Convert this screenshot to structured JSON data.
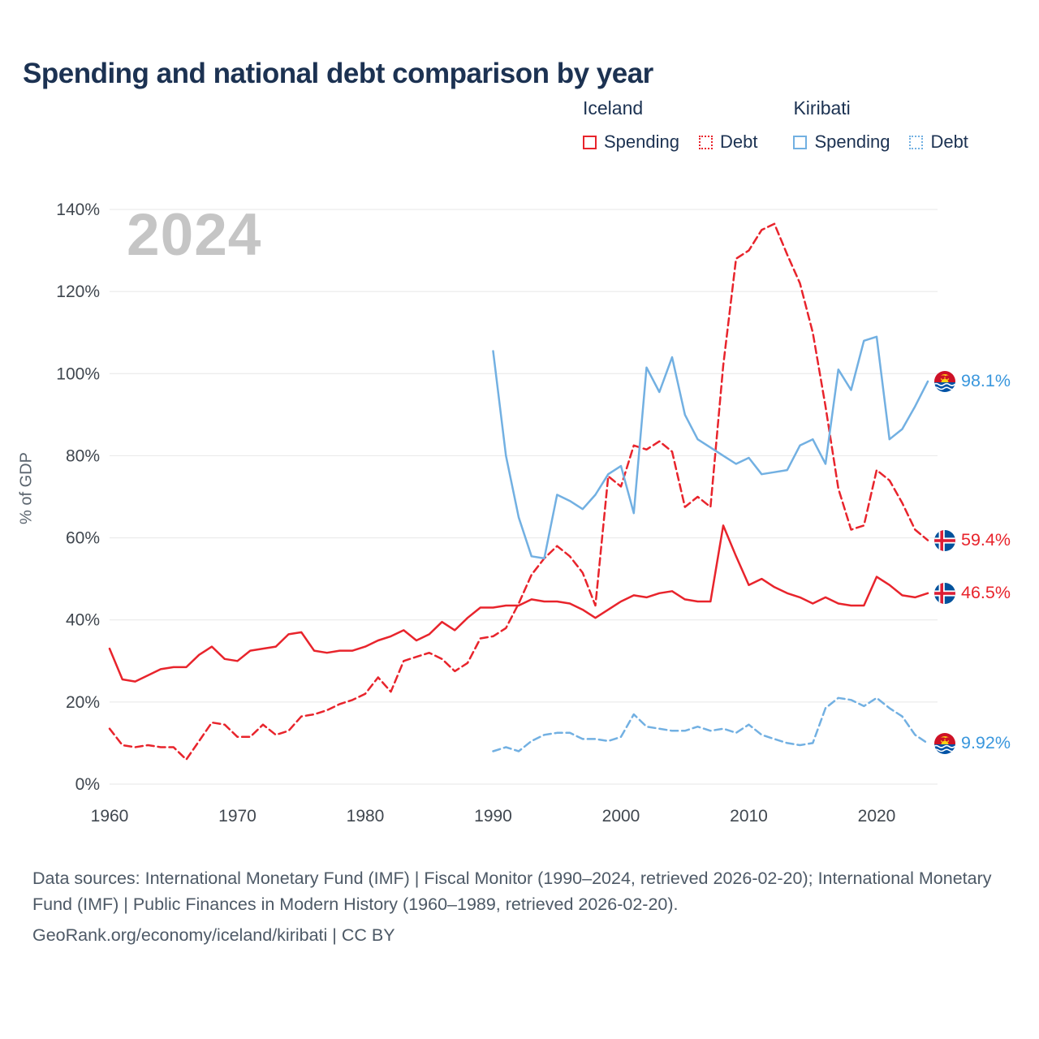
{
  "title": "Spending and national debt comparison by year",
  "watermark": "2024",
  "legend": {
    "groups": [
      {
        "country": "Iceland",
        "items": [
          {
            "label": "Spending",
            "color": "#e8242c",
            "style": "solid"
          },
          {
            "label": "Debt",
            "color": "#e8242c",
            "style": "dotted"
          }
        ]
      },
      {
        "country": "Kiribati",
        "items": [
          {
            "label": "Spending",
            "color": "#72b0e2",
            "style": "solid"
          },
          {
            "label": "Debt",
            "color": "#72b0e2",
            "style": "dotted"
          }
        ]
      }
    ]
  },
  "chart_data": {
    "type": "line",
    "title": "Spending and national debt comparison by year",
    "xlabel": "",
    "ylabel": "% of GDP",
    "ylim": [
      0,
      140
    ],
    "xlim": [
      1960,
      2024
    ],
    "grid": true,
    "legend_position": "top-right",
    "yticks": [
      {
        "label": "0%",
        "value": 0
      },
      {
        "label": "20%",
        "value": 20
      },
      {
        "label": "40%",
        "value": 40
      },
      {
        "label": "60%",
        "value": 60
      },
      {
        "label": "80%",
        "value": 80
      },
      {
        "label": "100%",
        "value": 100
      },
      {
        "label": "120%",
        "value": 120
      },
      {
        "label": "140%",
        "value": 140
      }
    ],
    "xticks": [
      {
        "label": "1960",
        "value": 1960
      },
      {
        "label": "1970",
        "value": 1970
      },
      {
        "label": "1980",
        "value": 1980
      },
      {
        "label": "1990",
        "value": 1990
      },
      {
        "label": "2000",
        "value": 2000
      },
      {
        "label": "2010",
        "value": 2010
      },
      {
        "label": "2020",
        "value": 2020
      }
    ],
    "series": [
      {
        "id": "iceland-spending",
        "name": "Iceland Spending",
        "country": "Iceland",
        "metric": "Spending",
        "color": "#e8242c",
        "dash": "solid",
        "x_start": 1960,
        "values": [
          33,
          25.5,
          25,
          26.5,
          28,
          28.5,
          28.5,
          31.5,
          33.5,
          30.5,
          30,
          32.5,
          33,
          33.5,
          36.5,
          37,
          32.5,
          32,
          32.5,
          32.5,
          33.5,
          35,
          36,
          37.5,
          35,
          36.5,
          39.5,
          37.5,
          40.5,
          43,
          43,
          43.5,
          43.5,
          45,
          44.5,
          44.5,
          44,
          42.5,
          40.5,
          42.5,
          44.5,
          46,
          45.5,
          46.5,
          47,
          45,
          44.5,
          44.5,
          63,
          55.5,
          48.5,
          50,
          48,
          46.5,
          45.5,
          44,
          45.5,
          44,
          43.5,
          43.5,
          50.5,
          48.5,
          46,
          45.5,
          46.5
        ]
      },
      {
        "id": "iceland-debt",
        "name": "Iceland Debt",
        "country": "Iceland",
        "metric": "Debt",
        "color": "#e8242c",
        "dash": "dashed",
        "x_start": 1960,
        "values": [
          13.5,
          9.5,
          9,
          9.5,
          9,
          9,
          6,
          10.5,
          15,
          14.5,
          11.5,
          11.5,
          14.5,
          12,
          13,
          16.5,
          17,
          18,
          19.5,
          20.5,
          22,
          26,
          22.5,
          30,
          31,
          32,
          30.5,
          27.5,
          29.5,
          35.5,
          36,
          38,
          44,
          51,
          55,
          58,
          55.5,
          51.5,
          43.5,
          75,
          72.5,
          82.5,
          81.5,
          83.5,
          81,
          67.5,
          70,
          67.5,
          102,
          128,
          130,
          135,
          136.5,
          129,
          122,
          110,
          92,
          72,
          62,
          63,
          76.5,
          74,
          68.5,
          62,
          59.4
        ]
      },
      {
        "id": "kiribati-spending",
        "name": "Kiribati Spending",
        "country": "Kiribati",
        "metric": "Spending",
        "color": "#72b0e2",
        "dash": "solid",
        "x_start": 1990,
        "values": [
          105.5,
          80,
          65,
          55.5,
          55,
          70.5,
          69,
          67,
          70.5,
          75.5,
          77.5,
          66,
          101.5,
          95.5,
          104,
          90,
          84,
          82,
          80,
          78,
          79.5,
          75.5,
          76,
          76.5,
          82.5,
          84,
          78,
          101,
          96,
          108,
          109,
          84,
          86.5,
          92,
          98.1
        ]
      },
      {
        "id": "kiribati-debt",
        "name": "Kiribati Debt",
        "country": "Kiribati",
        "metric": "Debt",
        "color": "#72b0e2",
        "dash": "dashed",
        "x_start": 1990,
        "values": [
          8,
          9,
          8,
          10.5,
          12,
          12.5,
          12.5,
          11,
          11,
          10.5,
          11.5,
          17,
          14,
          13.5,
          13,
          13,
          14,
          13,
          13.5,
          12.5,
          14.5,
          12,
          11,
          10,
          9.5,
          10,
          18.5,
          21,
          20.5,
          19,
          21,
          18.5,
          16.5,
          12,
          9.92
        ]
      }
    ],
    "end_labels": [
      {
        "id": "kiribati-spending",
        "text": "98.1%",
        "value": 98.1,
        "color": "#3a97dd",
        "flag": "kiribati"
      },
      {
        "id": "iceland-debt",
        "text": "59.4%",
        "value": 59.4,
        "color": "#e8242c",
        "flag": "iceland"
      },
      {
        "id": "iceland-spending",
        "text": "46.5%",
        "value": 46.5,
        "color": "#e8242c",
        "flag": "iceland"
      },
      {
        "id": "kiribati-debt",
        "text": "9.92%",
        "value": 9.92,
        "color": "#3a97dd",
        "flag": "kiribati"
      }
    ]
  },
  "footer": {
    "sources": "Data sources: International Monetary Fund (IMF) | Fiscal Monitor (1990–2024, retrieved 2026-02-20); International Monetary Fund (IMF) | Public Finances in Modern History (1960–1989, retrieved 2026-02-20).",
    "attribution": "GeoRank.org/economy/iceland/kiribati | CC BY"
  }
}
